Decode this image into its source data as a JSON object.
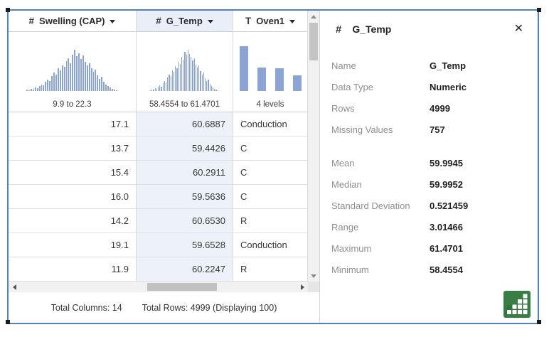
{
  "colors": {
    "window_border": "#4f81c5",
    "histogram_bar": "#8ba4d4",
    "selected_header_bg": "#e9eef8",
    "selected_cell_bg": "#edf1f9",
    "panel_icon_green": "#3a7d44"
  },
  "grid": {
    "columns": [
      {
        "icon": "#",
        "label": "Swelling (CAP)",
        "range_label": "9.9 to 22.3",
        "numeric": true,
        "selected": false,
        "histogram": {
          "type": "bell",
          "bars": [
            0.03,
            0.02,
            0.05,
            0.04,
            0.08,
            0.07,
            0.12,
            0.16,
            0.13,
            0.22,
            0.28,
            0.24,
            0.36,
            0.44,
            0.4,
            0.55,
            0.5,
            0.62,
            0.58,
            0.72,
            0.8,
            0.68,
            0.88,
            1.0,
            0.84,
            0.92,
            0.78,
            0.86,
            0.7,
            0.62,
            0.68,
            0.55,
            0.47,
            0.52,
            0.38,
            0.3,
            0.34,
            0.22,
            0.16,
            0.12,
            0.08,
            0.05,
            0.03,
            0.02
          ]
        }
      },
      {
        "icon": "#",
        "label": "G_Temp",
        "range_label": "58.4554 to 61.4701",
        "numeric": true,
        "selected": true,
        "histogram": {
          "type": "bell",
          "bars": [
            0.02,
            0.04,
            0.03,
            0.07,
            0.06,
            0.1,
            0.14,
            0.11,
            0.19,
            0.24,
            0.21,
            0.32,
            0.4,
            0.36,
            0.5,
            0.46,
            0.6,
            0.55,
            0.7,
            0.66,
            0.82,
            0.76,
            0.95,
            0.88,
            1.0,
            0.9,
            0.82,
            0.74,
            0.79,
            0.64,
            0.57,
            0.62,
            0.48,
            0.4,
            0.44,
            0.31,
            0.24,
            0.27,
            0.17,
            0.12,
            0.09,
            0.05,
            0.03,
            0.02
          ]
        }
      },
      {
        "icon": "T",
        "label": "Oven1",
        "range_label": "4 levels",
        "numeric": false,
        "selected": false,
        "histogram": {
          "type": "levels",
          "bars": [
            1.0,
            0.52,
            0.5,
            0.35
          ]
        }
      }
    ],
    "rows": [
      [
        "17.1",
        "60.6887",
        "Conduction"
      ],
      [
        "13.7",
        "59.4426",
        "C"
      ],
      [
        "15.4",
        "60.2911",
        "C"
      ],
      [
        "16.0",
        "59.5636",
        "C"
      ],
      [
        "14.2",
        "60.6530",
        "R"
      ],
      [
        "19.1",
        "59.6528",
        "Conduction"
      ],
      [
        "11.9",
        "60.2247",
        "R"
      ]
    ],
    "status": {
      "total_columns": "Total Columns: 14",
      "total_rows": "Total Rows: 4999 (Displaying 100)"
    }
  },
  "panel": {
    "icon": "#",
    "title": "G_Temp",
    "close_glyph": "✕",
    "stats_summary": [
      {
        "label": "Name",
        "value": "G_Temp"
      },
      {
        "label": "Data Type",
        "value": "Numeric"
      },
      {
        "label": "Rows",
        "value": "4999"
      },
      {
        "label": "Missing Values",
        "value": "757"
      }
    ],
    "stats_detail": [
      {
        "label": "Mean",
        "value": "59.9945"
      },
      {
        "label": "Median",
        "value": "59.9952"
      },
      {
        "label": "Standard Deviation",
        "value": "0.521459"
      },
      {
        "label": "Range",
        "value": "3.01466"
      },
      {
        "label": "Maximum",
        "value": "61.4701"
      },
      {
        "label": "Minimum",
        "value": "58.4554"
      }
    ]
  }
}
